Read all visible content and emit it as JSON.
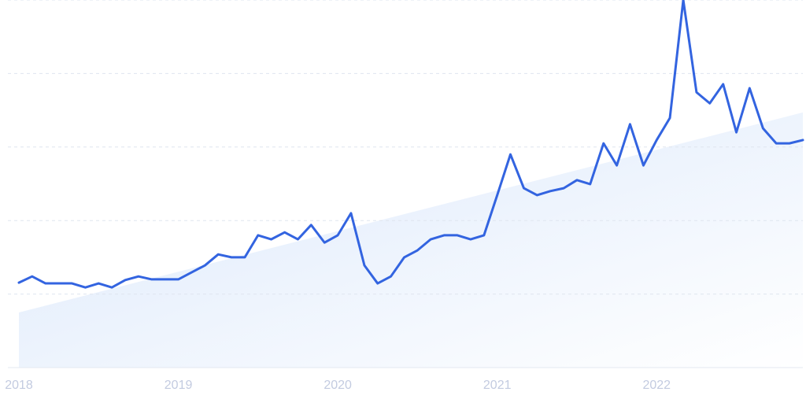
{
  "chart_data": {
    "type": "line",
    "x": [
      2018,
      2018.083,
      2018.167,
      2018.25,
      2018.333,
      2018.417,
      2018.5,
      2018.583,
      2018.667,
      2018.75,
      2018.833,
      2018.917,
      2019,
      2019.083,
      2019.167,
      2019.25,
      2019.333,
      2019.417,
      2019.5,
      2019.583,
      2019.667,
      2019.75,
      2019.833,
      2019.917,
      2020,
      2020.083,
      2020.167,
      2020.25,
      2020.333,
      2020.417,
      2020.5,
      2020.583,
      2020.667,
      2020.75,
      2020.833,
      2020.917,
      2021,
      2021.083,
      2021.167,
      2021.25,
      2021.333,
      2021.417,
      2021.5,
      2021.583,
      2021.667,
      2021.75,
      2021.833,
      2021.917,
      2022,
      2022.083,
      2022.167,
      2022.25,
      2022.333,
      2022.417,
      2022.5,
      2022.583,
      2022.667,
      2022.75,
      2022.833,
      2022.917
    ],
    "series": [
      {
        "color": "#3364e0",
        "values": [
          23.1,
          24.8,
          22.9,
          22.9,
          22.9,
          21.8,
          22.9,
          21.8,
          23.8,
          24.8,
          24.0,
          24.0,
          24.0,
          25.9,
          27.8,
          30.8,
          30.0,
          30.0,
          36.0,
          34.9,
          36.8,
          34.9,
          38.8,
          34.0,
          36.0,
          42.0,
          27.8,
          22.9,
          24.8,
          30.0,
          31.9,
          34.9,
          36.0,
          36.0,
          34.9,
          36.0,
          46.9,
          58.0,
          48.8,
          46.9,
          48.0,
          48.8,
          51.0,
          49.9,
          61.0,
          55.0,
          66.2,
          55.0,
          61.9,
          67.9,
          100,
          74.9,
          71.9,
          77.1,
          64.0,
          76.0,
          65.1,
          61.0,
          61.0,
          61.9
        ]
      }
    ],
    "trend": {
      "x": [
        2018,
        2022.917
      ],
      "values": [
        15,
        69.4
      ],
      "color": "#dbe8fb"
    },
    "xlim": [
      2018,
      2022.917
    ],
    "xticks": [
      2018,
      2019,
      2020,
      2021,
      2022
    ],
    "ylim": [
      0,
      100
    ],
    "yticks": [
      20,
      40,
      60,
      80,
      100
    ],
    "grid": true
  }
}
